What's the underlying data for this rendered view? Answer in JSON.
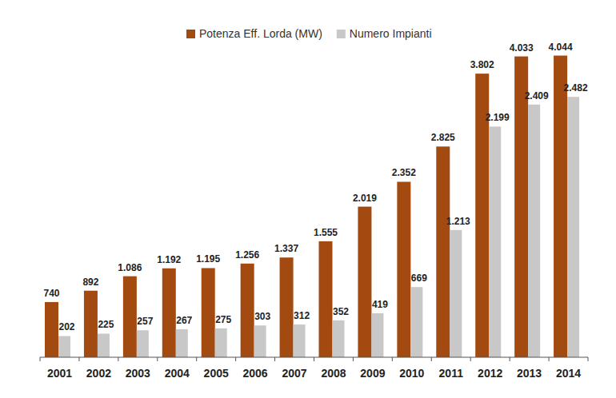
{
  "chart_data": {
    "type": "bar",
    "categories": [
      "2001",
      "2002",
      "2003",
      "2004",
      "2005",
      "2006",
      "2007",
      "2008",
      "2009",
      "2010",
      "2011",
      "2012",
      "2013",
      "2014"
    ],
    "series": [
      {
        "name": "Potenza Eff. Lorda (MW)",
        "color": "#a24a10",
        "values": [
          740,
          892,
          1086,
          1192,
          1195,
          1256,
          1337,
          1555,
          2019,
          2352,
          2825,
          3802,
          4033,
          4044
        ],
        "value_labels": [
          "740",
          "892",
          "1.086",
          "1.192",
          "1.195",
          "1.256",
          "1.337",
          "1.555",
          "2.019",
          "2.352",
          "2.825",
          "3.802",
          "4.033",
          "4.044"
        ]
      },
      {
        "name": "Numero Impianti",
        "color": "#c8c8c8",
        "axis": "y2",
        "values": [
          202,
          225,
          257,
          267,
          275,
          303,
          312,
          352,
          419,
          669,
          1213,
          2199,
          2409,
          2482
        ],
        "value_labels": [
          "202",
          "225",
          "257",
          "267",
          "275",
          "303",
          "312",
          "352",
          "419",
          "669",
          "1.213",
          "2.199",
          "2.409",
          "2.482"
        ]
      }
    ],
    "ylim": [
      0,
      4500
    ],
    "y2lim": [
      0,
      3200
    ],
    "data_labels": true,
    "legend": "top",
    "tick_labels": "x",
    "grid": false
  }
}
